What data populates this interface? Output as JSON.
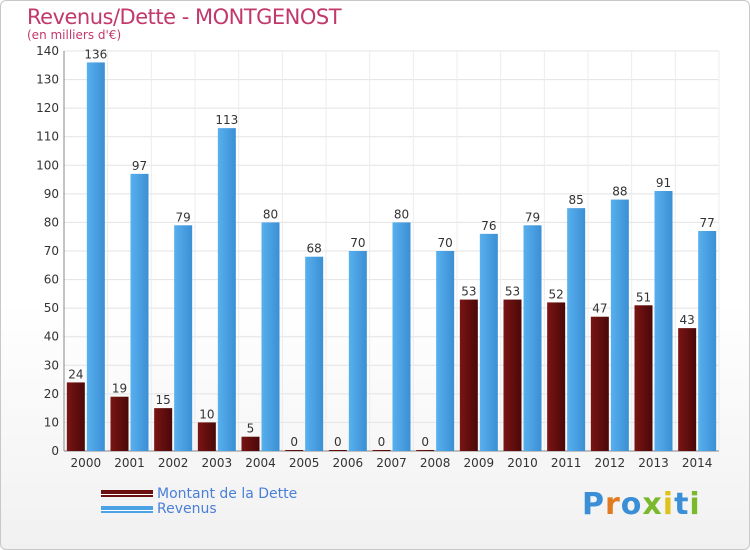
{
  "header": {
    "title": "Revenus/Dette - MONTGENOST",
    "subtitle": "(en milliers d'€)"
  },
  "legend": {
    "items": [
      {
        "label": "Montant de la Dette",
        "color": "#6b1010"
      },
      {
        "label": "Revenus",
        "color": "#4ba3e6"
      }
    ]
  },
  "logo": {
    "letters": [
      "P",
      "r",
      "o",
      "x",
      "i",
      "t",
      "i"
    ],
    "colors": [
      "#3a8fd6",
      "#e07b1f",
      "#3a8fd6",
      "#7ab82c",
      "#e0c21f",
      "#3a8fd6",
      "#7ab82c"
    ]
  },
  "chart_data": {
    "type": "bar",
    "categories": [
      "2000",
      "2001",
      "2002",
      "2003",
      "2004",
      "2005",
      "2006",
      "2007",
      "2008",
      "2009",
      "2010",
      "2011",
      "2012",
      "2013",
      "2014"
    ],
    "series": [
      {
        "name": "Montant de la Dette",
        "color": "#6b1010",
        "values": [
          24,
          19,
          15,
          10,
          5,
          0,
          0,
          0,
          0,
          53,
          53,
          52,
          47,
          51,
          43
        ]
      },
      {
        "name": "Revenus",
        "color": "#4ba3e6",
        "values": [
          136,
          97,
          79,
          113,
          80,
          68,
          70,
          80,
          70,
          76,
          79,
          85,
          88,
          91,
          77
        ]
      }
    ],
    "ylim": [
      0,
      140
    ],
    "yticks": [
      0,
      10,
      20,
      30,
      40,
      50,
      60,
      70,
      80,
      90,
      100,
      110,
      120,
      130,
      140
    ],
    "grid": true
  }
}
